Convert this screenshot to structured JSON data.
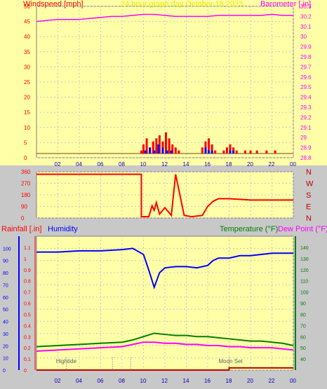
{
  "header": {
    "left": "Windspeed [mph]",
    "center": "24 hour graph day   October 18 2023",
    "right": "Barometer [.in]"
  },
  "panel3_header": {
    "rainfall": "Rainfall [.in]",
    "humidity": "Humidity",
    "temperature": "Temperature (°F)",
    "dewpoint": "Dew Point (°F)"
  },
  "colors": {
    "background": "#ffffa8",
    "outer": "#c8c8c8",
    "grid": "#c8c8c8",
    "wind": "#ff0000",
    "gust": "#0000ff",
    "barometer": "#ff00ff",
    "direction": "#ff0000",
    "humidity": "#0000ff",
    "temperature": "#008000",
    "dewpoint": "#ff00ff",
    "rain": "#c00000",
    "left_axis_text": "#ff0000",
    "right_axis_text": "#ff00ff",
    "center_title": "#e8e800",
    "compass": "#c00000"
  },
  "chart_data": [
    {
      "type": "line",
      "name_left_axis": "Windspeed [mph]",
      "name_right_axis": "Barometer [.in]",
      "x_ticks": [
        "02",
        "04",
        "06",
        "08",
        "10",
        "12",
        "14",
        "16",
        "18",
        "20",
        "22",
        "00"
      ],
      "xlim": [
        0,
        24
      ],
      "ylim_left": [
        0,
        50
      ],
      "y_ticks_left": [
        0,
        5,
        10,
        15,
        20,
        25,
        30,
        35,
        40,
        45,
        50
      ],
      "ylim_right": [
        28.8,
        30.3
      ],
      "y_ticks_right": [
        "28.8",
        "28.9",
        "29",
        "29.1",
        "29.2",
        "29.3",
        "29.4",
        "29.5",
        "29.6",
        "29.7",
        "29.8",
        "29.9",
        "30",
        "30.1",
        "30.2",
        "30.3"
      ],
      "grid": true,
      "barometer": {
        "x": [
          0,
          1,
          2,
          3,
          4,
          5,
          6,
          7,
          8,
          9,
          10,
          11,
          12,
          13,
          14,
          15,
          16,
          17,
          18,
          19,
          20,
          21,
          22,
          23,
          24
        ],
        "y": [
          30.15,
          30.16,
          30.17,
          30.17,
          30.17,
          30.18,
          30.19,
          30.2,
          30.2,
          30.21,
          30.22,
          30.22,
          30.21,
          30.2,
          30.2,
          30.2,
          30.2,
          30.21,
          30.21,
          30.21,
          30.21,
          30.21,
          30.22,
          30.21,
          30.21
        ]
      },
      "wind": {
        "x": [
          9.8,
          10,
          10.3,
          10.6,
          10.9,
          11.2,
          11.5,
          11.8,
          12.1,
          12.4,
          12.7,
          13,
          13.3,
          15.5,
          15.8,
          16.1,
          16.4,
          16.7,
          17.5,
          17.8,
          18.1,
          18.4,
          18.7,
          19.5,
          20,
          20.6,
          21.5,
          22.3
        ],
        "y": [
          1,
          3,
          5,
          2,
          4,
          5,
          6,
          4,
          7,
          5,
          3,
          2,
          1,
          2,
          4,
          5,
          3,
          1,
          1,
          2,
          3,
          2,
          1,
          1,
          1,
          1,
          1,
          1
        ]
      },
      "gust": {
        "x": [
          10.2,
          10.6,
          11,
          11.4,
          11.8,
          12.2,
          12.6,
          15.8,
          16.1,
          16.4,
          18.1,
          18.4
        ],
        "y": [
          1,
          2,
          1,
          3,
          2,
          1,
          1,
          2,
          1,
          1,
          1,
          1
        ]
      }
    },
    {
      "type": "line",
      "name": "Wind direction",
      "ylim_left": [
        0,
        360
      ],
      "y_ticks_left": [
        0,
        90,
        180,
        270,
        360
      ],
      "compass_labels": [
        "N",
        "W",
        "S",
        "E",
        "N"
      ],
      "direction": {
        "x": [
          0,
          9.8,
          9.8,
          10.5,
          10.8,
          11,
          11.2,
          11.5,
          12,
          12.6,
          13,
          13.8,
          14.5,
          15.5,
          16,
          16.5,
          17,
          18,
          20,
          24
        ],
        "y": [
          340,
          340,
          10,
          10,
          95,
          60,
          120,
          30,
          80,
          20,
          340,
          20,
          10,
          20,
          90,
          130,
          150,
          150,
          140,
          140
        ]
      }
    },
    {
      "type": "line",
      "x_ticks": [
        "02",
        "04",
        "06",
        "08",
        "10",
        "12",
        "14",
        "16",
        "18",
        "20",
        "22",
        "00"
      ],
      "xlim": [
        0,
        24
      ],
      "ylim_rain": [
        0,
        1.2
      ],
      "y_ticks_rain": [
        "0",
        "0.1",
        "0.2",
        "0.3",
        "0.4",
        "0.5",
        "0.6",
        "0.7",
        "0.8",
        "0.9",
        "1",
        "1.1"
      ],
      "ylim_humidity": [
        0,
        110
      ],
      "y_ticks_humidity": [
        0,
        10,
        20,
        30,
        40,
        50,
        60,
        70,
        80,
        90,
        100
      ],
      "ylim_temp": [
        30,
        150
      ],
      "y_ticks_temp": [
        40,
        50,
        60,
        70,
        80,
        90,
        100,
        110,
        120,
        130,
        140
      ],
      "annotations": [
        {
          "label": "Hightide",
          "x": 2.8
        },
        {
          "label": "",
          "x": 7.1
        },
        {
          "label": "",
          "x": 8.8
        },
        {
          "label": "Moon Set",
          "x": 18.0
        }
      ],
      "humidity": {
        "x": [
          0,
          2,
          4,
          6,
          8,
          9,
          10,
          10.5,
          11,
          11.5,
          12,
          13,
          14,
          15,
          16,
          16.5,
          17,
          18,
          19,
          20,
          21,
          22,
          23,
          24
        ],
        "y": [
          97,
          97,
          98,
          98,
          99,
          100,
          95,
          82,
          68,
          80,
          84,
          85,
          85,
          84,
          86,
          90,
          92,
          92,
          94,
          94,
          95,
          96,
          96,
          96
        ]
      },
      "temperature": {
        "x": [
          0,
          2,
          4,
          6,
          8,
          9,
          10,
          11,
          12,
          13,
          14,
          15,
          16,
          17,
          18,
          19,
          20,
          21,
          22,
          23,
          24
        ],
        "y": [
          51,
          52,
          53,
          54,
          55,
          57,
          60,
          63,
          62,
          61,
          61,
          60,
          60,
          59,
          58,
          57,
          56,
          56,
          55,
          54,
          52
        ]
      },
      "dewpoint": {
        "x": [
          0,
          2,
          4,
          6,
          8,
          9,
          10,
          11,
          12,
          13,
          14,
          15,
          16,
          17,
          18,
          19,
          20,
          21,
          22,
          23,
          24
        ],
        "y": [
          47,
          48,
          49,
          50,
          51,
          53,
          55,
          55,
          54,
          54,
          53,
          53,
          52,
          52,
          51,
          51,
          50,
          50,
          50,
          49,
          48
        ]
      },
      "rain": {
        "x": [
          0,
          18,
          18,
          24
        ],
        "y": [
          0,
          0,
          0.02,
          0.02
        ]
      }
    }
  ]
}
